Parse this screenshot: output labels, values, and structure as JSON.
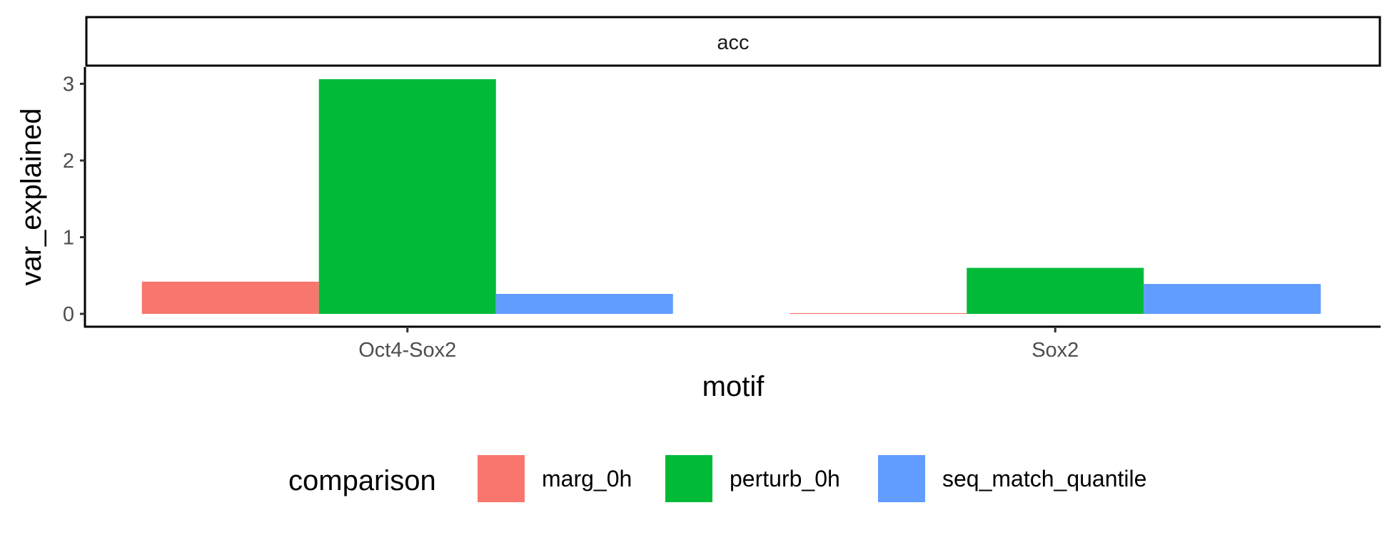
{
  "chart_data": {
    "type": "bar",
    "facet": "acc",
    "categories": [
      "Oct4-Sox2",
      "Sox2"
    ],
    "series": [
      {
        "name": "marg_0h",
        "values": [
          0.42,
          0.01
        ],
        "color": "#F8766D"
      },
      {
        "name": "perturb_0h",
        "values": [
          3.06,
          0.6
        ],
        "color": "#00BA38"
      },
      {
        "name": "seq_match_quantile",
        "values": [
          0.26,
          0.39
        ],
        "color": "#619CFF"
      }
    ],
    "xlabel": "motif",
    "ylabel": "var_explained",
    "ylim": [
      -0.15,
      3.2
    ],
    "yticks": [
      0,
      1,
      2,
      3
    ],
    "legend_title": "comparison",
    "legend_position": "bottom",
    "grid": false
  }
}
